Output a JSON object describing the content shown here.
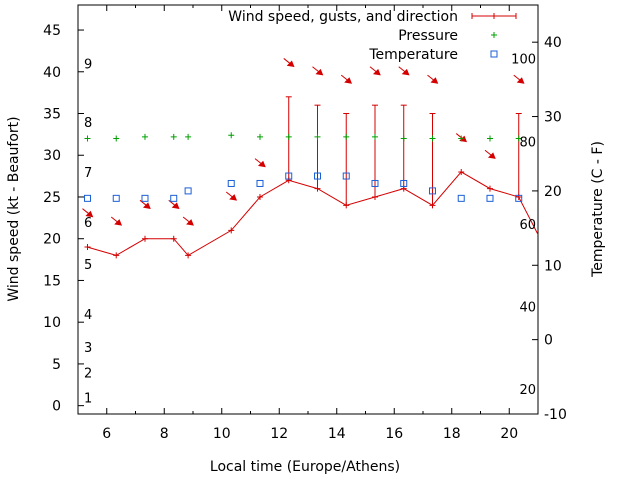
{
  "chart_data": {
    "type": "line",
    "xlabel": "Local time (Europe/Athens)",
    "ylabel": "Wind speed (kt - Beaufort)",
    "y2label": "Temperature (C - F)",
    "xlim": [
      5,
      21
    ],
    "ylim": [
      -1,
      48
    ],
    "y2lim": [
      -10,
      45
    ],
    "x_ticks": [
      6,
      8,
      10,
      12,
      14,
      16,
      18,
      20
    ],
    "y_ticks": [
      0,
      5,
      10,
      15,
      20,
      25,
      30,
      35,
      40,
      45
    ],
    "y2_ticks": [
      -10,
      0,
      10,
      20,
      30,
      40
    ],
    "beaufort_labels": [
      {
        "label": "1",
        "kt": 1
      },
      {
        "label": "2",
        "kt": 4
      },
      {
        "label": "3",
        "kt": 7
      },
      {
        "label": "4",
        "kt": 11
      },
      {
        "label": "5",
        "kt": 17
      },
      {
        "label": "6",
        "kt": 22
      },
      {
        "label": "7",
        "kt": 28
      },
      {
        "label": "8",
        "kt": 34
      },
      {
        "label": "9",
        "kt": 41
      }
    ],
    "fahrenheit_labels": [
      {
        "label": "20",
        "f": 20
      },
      {
        "label": "40",
        "f": 40
      },
      {
        "label": "60",
        "f": 60
      },
      {
        "label": "80",
        "f": 80
      },
      {
        "label": "100",
        "f": 100
      }
    ],
    "legend": {
      "wind": "Wind speed, gusts, and direction",
      "pressure": "Pressure",
      "temperature": "Temperature",
      "position": "top-right"
    },
    "colors": {
      "wind": "#d40000",
      "pressure": "#00a000",
      "temperature": "#1a5fd8"
    },
    "wind": {
      "x": [
        5.33,
        6.33,
        7.33,
        8.33,
        8.83,
        10.33,
        11.33,
        12.33,
        13.33,
        14.33,
        15.33,
        16.33,
        17.33,
        18.33,
        19.33,
        20.33,
        21.0
      ],
      "speed": [
        19,
        18,
        20,
        20,
        18,
        21,
        25,
        27,
        26,
        24,
        25,
        26,
        24,
        28,
        26,
        25,
        20.5
      ],
      "gust": [
        null,
        null,
        null,
        null,
        null,
        null,
        null,
        37,
        36,
        35,
        36,
        36,
        35,
        null,
        null,
        35,
        null
      ]
    },
    "direction": {
      "x": [
        5.33,
        6.33,
        7.33,
        8.33,
        8.83,
        10.33,
        11.33,
        12.33,
        13.33,
        14.33,
        15.33,
        16.33,
        17.33,
        18.33,
        19.33,
        20.33
      ],
      "kt": [
        23,
        22,
        24,
        24,
        22,
        25,
        29,
        41,
        40,
        39,
        40,
        40,
        39,
        32,
        30,
        39
      ]
    },
    "pressure": {
      "x": [
        5.33,
        6.33,
        7.33,
        8.33,
        8.83,
        10.33,
        11.33,
        12.33,
        13.33,
        14.33,
        15.33,
        16.33,
        17.33,
        18.33,
        19.33,
        20.33
      ],
      "kt": [
        32,
        32,
        32.2,
        32.2,
        32.2,
        32.4,
        32.2,
        32.2,
        32.2,
        32.2,
        32.2,
        32,
        32,
        32,
        32,
        32
      ]
    },
    "temperature": {
      "x": [
        5.33,
        6.33,
        7.33,
        8.33,
        8.83,
        10.33,
        11.33,
        12.33,
        13.33,
        14.33,
        15.33,
        16.33,
        17.33,
        18.33,
        19.33,
        20.33
      ],
      "c": [
        19,
        19,
        19,
        19,
        20,
        21,
        21,
        22,
        22,
        22,
        21,
        21,
        20,
        19,
        19,
        19
      ]
    }
  }
}
